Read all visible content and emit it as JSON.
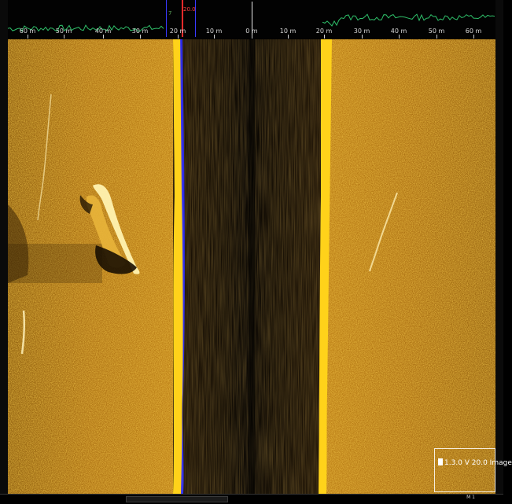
{
  "scale_bar": {
    "labels": [
      "60 m",
      "50 m",
      "40 m",
      "30 m",
      "20 m",
      "10 m",
      "0 m",
      "10 m",
      "20 m",
      "30 m",
      "40 m",
      "50 m",
      "60 m"
    ],
    "marker_label": "20.0",
    "marker_depth_label": "7",
    "marker_color": "#ff2a2a",
    "marker_border_color": "#3a3aff"
  },
  "sonar": {
    "palette": [
      "#1a0f02",
      "#c98a14",
      "#ffd21a"
    ],
    "center_icon": "water-column-icon"
  },
  "info_box": {
    "text": "1.3.0 V 20.0 Image"
  },
  "bottom_bar": {
    "tag": "M 1"
  }
}
